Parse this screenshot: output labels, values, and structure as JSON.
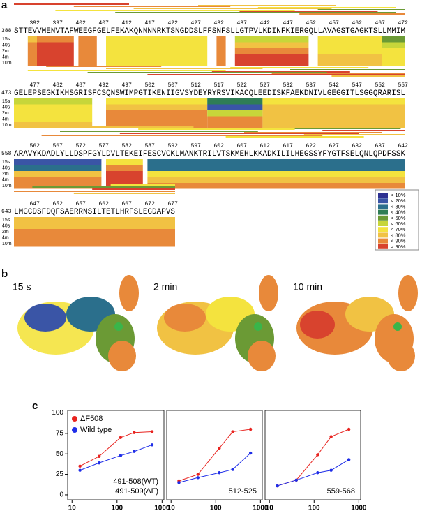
{
  "panel_a": {
    "label": "a",
    "time_labels": [
      "15s",
      "40s",
      "2m",
      "4m",
      "10m"
    ],
    "rows": [
      {
        "start": 388,
        "ticks": [
          392,
          397,
          402,
          407,
          412,
          417,
          422,
          427,
          432,
          437,
          442,
          447,
          452,
          457,
          462,
          467,
          472
        ],
        "sequence": "STTEVVMENVTAFWEEGFGELFEKAKQNNNNRKTSNGDDSLFFSNFSLLGTPVLKDINFKIERGQLLAVAGSTGAGKTSLLMMIM"
      },
      {
        "start": 473,
        "ticks": [
          477,
          482,
          487,
          492,
          497,
          502,
          507,
          512,
          517,
          522,
          527,
          532,
          537,
          542,
          547,
          552,
          557
        ],
        "sequence": "GELEPSEGKIKHSGRISFCSQNSWIMPGTIKENIIGVSYDEYRYRSVIKACQLEEDISKFAEKDNIVLGEGGITLSGGQRARISL"
      },
      {
        "start": 558,
        "ticks": [
          562,
          567,
          572,
          577,
          582,
          587,
          592,
          597,
          602,
          607,
          612,
          617,
          622,
          627,
          632,
          637,
          642
        ],
        "sequence": "ARAVYKDADLYLLDSPFGYLDVLTEKEIFESCVCKLMANKTRILVTSKMEHLKKADKILILHEGSSYFYGTFSELQNLQPDFSSK"
      },
      {
        "start": 643,
        "ticks": [
          647,
          652,
          657,
          662,
          667,
          672,
          677
        ],
        "sequence": "LMGCDSFDQFSAERRNSILTETLHRFSLEGDAPVS"
      }
    ],
    "legend": [
      {
        "label": "< 10%",
        "color": "#2e3192"
      },
      {
        "label": "< 20%",
        "color": "#3a55a6"
      },
      {
        "label": "< 30%",
        "color": "#2b6f8c"
      },
      {
        "label": "< 40%",
        "color": "#2f7d55"
      },
      {
        "label": "< 50%",
        "color": "#6b9a35"
      },
      {
        "label": "< 60%",
        "color": "#c7d63a"
      },
      {
        "label": "< 70%",
        "color": "#f4e33e"
      },
      {
        "label": "< 80%",
        "color": "#f1c243"
      },
      {
        "label": "< 90%",
        "color": "#e8893a"
      },
      {
        "label": "> 90%",
        "color": "#d8432e"
      }
    ]
  },
  "panel_b": {
    "label": "b",
    "titles": [
      "15 s",
      "2 min",
      "10 min"
    ]
  },
  "panel_c": {
    "label": "c"
  },
  "chart_data": [
    {
      "type": "line",
      "x": [
        15,
        40,
        120,
        240,
        600
      ],
      "log_x": true,
      "xlim": [
        8,
        1100
      ],
      "ylim": [
        -6,
        103
      ],
      "xticks": [
        10,
        100,
        1000
      ],
      "yticks": [
        0,
        25,
        50,
        75,
        100
      ],
      "legend": "upper left",
      "annotation": [
        "491-508(WT)",
        "491-509(ΔF)"
      ],
      "series": [
        {
          "name": "ΔF508",
          "color": "#e8231f",
          "values": [
            35,
            47,
            70,
            76,
            77
          ]
        },
        {
          "name": "Wild type",
          "color": "#1f2ee8",
          "values": [
            30,
            39,
            48,
            53,
            61
          ]
        }
      ]
    },
    {
      "type": "line",
      "x": [
        15,
        40,
        120,
        240,
        600
      ],
      "log_x": true,
      "xlim": [
        8,
        1100
      ],
      "ylim": [
        -6,
        103
      ],
      "xticks": [
        10,
        100,
        1000
      ],
      "annotation": [
        "512-525"
      ],
      "series": [
        {
          "color": "#e8231f",
          "values": [
            17,
            25,
            57,
            77,
            80
          ]
        },
        {
          "color": "#1f2ee8",
          "values": [
            15,
            21,
            27,
            31,
            51
          ]
        }
      ]
    },
    {
      "type": "line",
      "x": [
        15,
        40,
        120,
        240,
        600
      ],
      "log_x": true,
      "xlim": [
        8,
        1100
      ],
      "ylim": [
        -6,
        103
      ],
      "xticks": [
        10,
        100,
        1000
      ],
      "annotation": [
        "559-568"
      ],
      "series": [
        {
          "color": "#e8231f",
          "values": [
            11,
            18,
            49,
            71,
            80
          ]
        },
        {
          "color": "#1f2ee8",
          "values": [
            11,
            18,
            27,
            30,
            43
          ]
        }
      ]
    }
  ]
}
